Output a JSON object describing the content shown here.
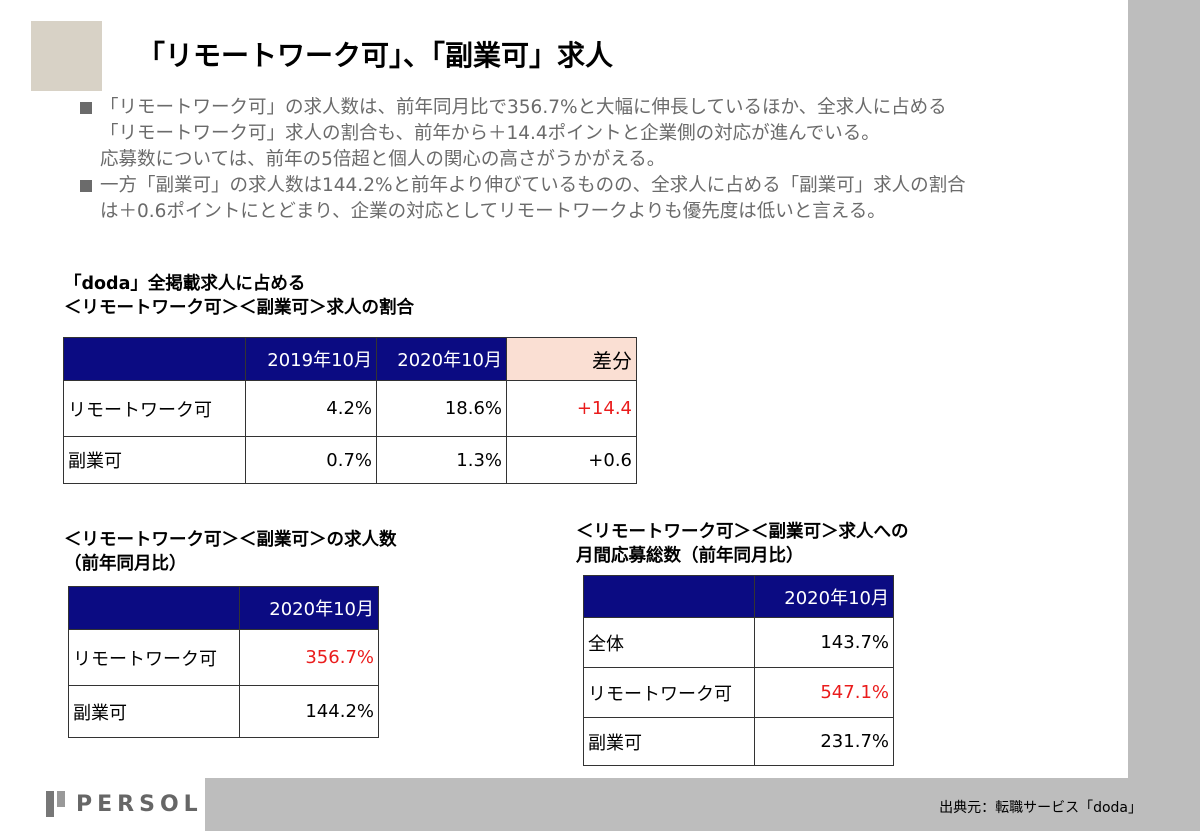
{
  "title": "「リモートワーク可」、「副業可」求人",
  "bullets": [
    {
      "lines": [
        "「リモートワーク可」の求人数は、前年同月比で356.7%と大幅に伸長しているほか、全求人に占める",
        "「リモートワーク可」求人の割合も、前年から＋14.4ポイントと企業側の対応が進んでいる。",
        "応募数については、前年の5倍超と個人の関心の高さがうかがえる。"
      ]
    },
    {
      "lines": [
        "一方「副業可」の求人数は144.2%と前年より伸びているものの、全求人に占める「副業可」求人の割合",
        "は＋0.6ポイントにとどまり、企業の対応としてリモートワークよりも優先度は低いと言える。"
      ]
    }
  ],
  "table1": {
    "heading_lines": [
      "「doda」全掲載求人に占める",
      "＜リモートワーク可＞＜副業可＞求人の割合"
    ],
    "columns": [
      "",
      "2019年10月",
      "2020年10月",
      "差分"
    ],
    "rows": [
      {
        "label": "リモートワーク可",
        "v2019": "4.2%",
        "v2020": "18.6%",
        "diff": "+14.4",
        "diff_red": true
      },
      {
        "label": "副業可",
        "v2019": "0.7%",
        "v2020": "1.3%",
        "diff": "+0.6",
        "diff_red": false
      }
    ]
  },
  "table2": {
    "heading_lines": [
      "＜リモートワーク可＞＜副業可＞の求人数",
      "（前年同月比）"
    ],
    "columns": [
      "",
      "2020年10月"
    ],
    "rows": [
      {
        "label": "リモートワーク可",
        "value": "356.7%",
        "red": true
      },
      {
        "label": "副業可",
        "value": "144.2%",
        "red": false
      }
    ]
  },
  "table3": {
    "heading_lines": [
      "＜リモートワーク可＞＜副業可＞求人への",
      "月間応募総数（前年同月比）"
    ],
    "columns": [
      "",
      "2020年10月"
    ],
    "rows": [
      {
        "label": "全体",
        "value": "143.7%",
        "red": false
      },
      {
        "label": "リモートワーク可",
        "value": "547.1%",
        "red": true
      },
      {
        "label": "副業可",
        "value": "231.7%",
        "red": false
      }
    ]
  },
  "footer": {
    "logo": "PERSOL",
    "source": "出典元：転職サービス「doda」"
  },
  "colors": {
    "header_navy": "#0b0b82",
    "diff_header": "#fadfd3",
    "highlight_red": "#ea1c1c",
    "corner_block": "#d8d2c6"
  }
}
